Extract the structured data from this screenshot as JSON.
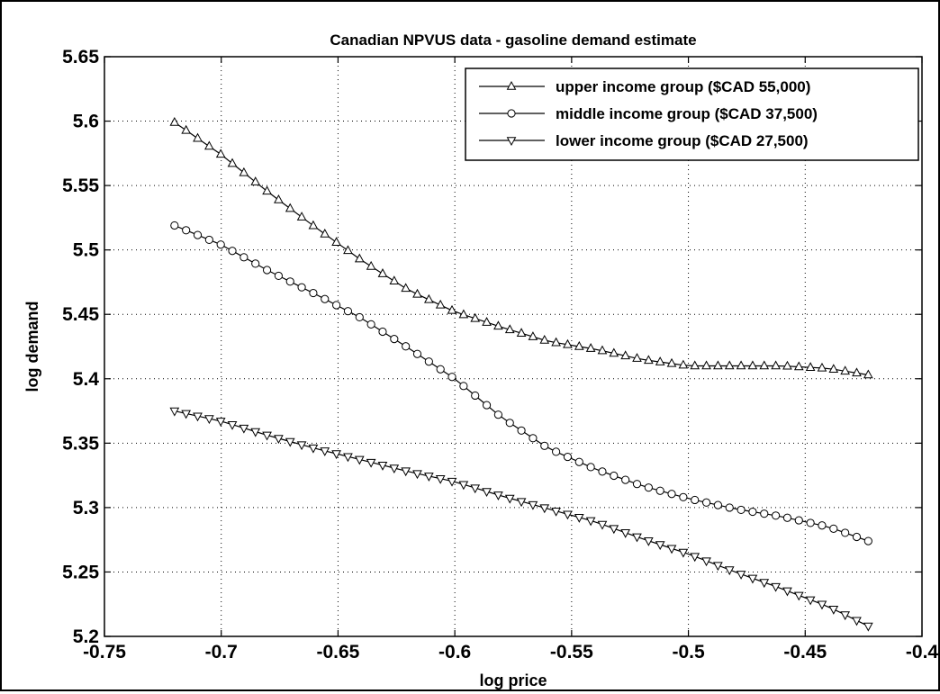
{
  "chart_data": {
    "type": "line",
    "title": "Canadian NPVUS data - gasoline demand estimate",
    "xlabel": "log price",
    "ylabel": "log demand",
    "xlim": [
      -0.75,
      -0.4
    ],
    "ylim": [
      5.2,
      5.65
    ],
    "xticks": [
      -0.75,
      -0.7,
      -0.65,
      -0.6,
      -0.55,
      -0.5,
      -0.45,
      -0.4
    ],
    "xtick_labels": [
      "-0.75",
      "-0.7",
      "-0.65",
      "-0.6",
      "-0.55",
      "-0.5",
      "-0.45",
      "-0.4"
    ],
    "yticks": [
      5.2,
      5.25,
      5.3,
      5.35,
      5.4,
      5.45,
      5.5,
      5.55,
      5.6,
      5.65
    ],
    "ytick_labels": [
      "5.2",
      "5.25",
      "5.3",
      "5.35",
      "5.4",
      "5.45",
      "5.5",
      "5.55",
      "5.6",
      "5.65"
    ],
    "grid": true,
    "legend_position": "top-right",
    "x_range": [
      -0.72,
      -0.423
    ],
    "n_points": 61,
    "series": [
      {
        "name": "upper income group ($CAD 55,000)",
        "marker": "triangle-up",
        "control_points": [
          [
            -0.72,
            5.599
          ],
          [
            -0.7,
            5.574
          ],
          [
            -0.68,
            5.545
          ],
          [
            -0.66,
            5.518
          ],
          [
            -0.64,
            5.492
          ],
          [
            -0.62,
            5.469
          ],
          [
            -0.6,
            5.452
          ],
          [
            -0.58,
            5.44
          ],
          [
            -0.56,
            5.429
          ],
          [
            -0.54,
            5.423
          ],
          [
            -0.52,
            5.415
          ],
          [
            -0.5,
            5.41
          ],
          [
            -0.48,
            5.41
          ],
          [
            -0.46,
            5.41
          ],
          [
            -0.44,
            5.408
          ],
          [
            -0.423,
            5.403
          ]
        ]
      },
      {
        "name": "middle income group ($CAD 37,500)",
        "marker": "circle",
        "control_points": [
          [
            -0.72,
            5.519
          ],
          [
            -0.7,
            5.504
          ],
          [
            -0.68,
            5.484
          ],
          [
            -0.66,
            5.466
          ],
          [
            -0.64,
            5.447
          ],
          [
            -0.62,
            5.424
          ],
          [
            -0.6,
            5.4
          ],
          [
            -0.58,
            5.37
          ],
          [
            -0.56,
            5.346
          ],
          [
            -0.54,
            5.33
          ],
          [
            -0.52,
            5.317
          ],
          [
            -0.5,
            5.307
          ],
          [
            -0.48,
            5.299
          ],
          [
            -0.46,
            5.293
          ],
          [
            -0.44,
            5.285
          ],
          [
            -0.423,
            5.274
          ]
        ]
      },
      {
        "name": "lower income group ($CAD 27,500)",
        "marker": "triangle-down",
        "control_points": [
          [
            -0.72,
            5.375
          ],
          [
            -0.7,
            5.367
          ],
          [
            -0.68,
            5.356
          ],
          [
            -0.66,
            5.346
          ],
          [
            -0.64,
            5.337
          ],
          [
            -0.62,
            5.328
          ],
          [
            -0.6,
            5.32
          ],
          [
            -0.58,
            5.309
          ],
          [
            -0.56,
            5.299
          ],
          [
            -0.54,
            5.289
          ],
          [
            -0.52,
            5.276
          ],
          [
            -0.5,
            5.264
          ],
          [
            -0.48,
            5.25
          ],
          [
            -0.46,
            5.237
          ],
          [
            -0.44,
            5.223
          ],
          [
            -0.423,
            5.208
          ]
        ]
      }
    ]
  }
}
